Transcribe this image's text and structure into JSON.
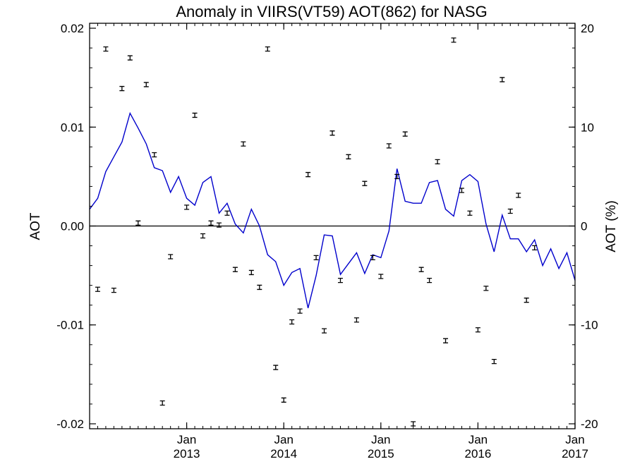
{
  "chart_data": {
    "type": "line",
    "title": "Anomaly in VIIRS(VT59) AOT(862) for NASG",
    "ylabel": "AOT",
    "ylabel_right": "AOT (%)",
    "xlabel": "",
    "xlim": [
      "2012-01",
      "2017-01"
    ],
    "ylim": [
      -0.0205,
      0.0205
    ],
    "ylim_right": [
      -20.5,
      20.5
    ],
    "yticks": [
      {
        "value": 0.02,
        "label": "0.02"
      },
      {
        "value": 0.01,
        "label": "0.01"
      },
      {
        "value": 0.0,
        "label": "0.00"
      },
      {
        "value": -0.01,
        "label": "-0.01"
      },
      {
        "value": -0.02,
        "label": "-0.02"
      }
    ],
    "yticks_right": [
      {
        "value": 20,
        "label": "20"
      },
      {
        "value": 10,
        "label": "10"
      },
      {
        "value": 0,
        "label": "0"
      },
      {
        "value": -10,
        "label": "-10"
      },
      {
        "value": -20,
        "label": "-20"
      }
    ],
    "xticks": [
      {
        "date": "2013-01",
        "month": "Jan",
        "year": "2013"
      },
      {
        "date": "2014-01",
        "month": "Jan",
        "year": "2014"
      },
      {
        "date": "2015-01",
        "month": "Jan",
        "year": "2015"
      },
      {
        "date": "2016-01",
        "month": "Jan",
        "year": "2016"
      },
      {
        "date": "2017-01",
        "month": "Jan",
        "year": "2017"
      }
    ],
    "zero_line": true,
    "grid": false,
    "series": [
      {
        "style": "line",
        "color": "#0000cc",
        "x": [
          "2012-01",
          "2012-02",
          "2012-03",
          "2012-04",
          "2012-05",
          "2012-06",
          "2012-07",
          "2012-08",
          "2012-09",
          "2012-10",
          "2012-11",
          "2012-12",
          "2013-01",
          "2013-02",
          "2013-03",
          "2013-04",
          "2013-05",
          "2013-06",
          "2013-07",
          "2013-08",
          "2013-09",
          "2013-10",
          "2013-11",
          "2013-12",
          "2014-01",
          "2014-02",
          "2014-03",
          "2014-04",
          "2014-05",
          "2014-06",
          "2014-07",
          "2014-08",
          "2014-09",
          "2014-10",
          "2014-11",
          "2014-12",
          "2015-01",
          "2015-02",
          "2015-03",
          "2015-04",
          "2015-05",
          "2015-06",
          "2015-07",
          "2015-08",
          "2015-09",
          "2015-10",
          "2015-11",
          "2015-12",
          "2016-01",
          "2016-02",
          "2016-03",
          "2016-04",
          "2016-05",
          "2016-06",
          "2016-07",
          "2016-08",
          "2016-09",
          "2016-10",
          "2016-11",
          "2016-12",
          "2017-01"
        ],
        "values": [
          0.0017,
          0.0028,
          0.0055,
          0.007,
          0.0085,
          0.0114,
          0.0099,
          0.0083,
          0.0059,
          0.0056,
          0.0034,
          0.005,
          0.0028,
          0.0021,
          0.0044,
          0.005,
          0.0013,
          0.0023,
          0.0002,
          -0.0007,
          0.0017,
          0.0,
          -0.0029,
          -0.0036,
          -0.006,
          -0.0047,
          -0.0043,
          -0.0083,
          -0.005,
          -0.0009,
          -0.001,
          -0.0049,
          -0.0038,
          -0.0027,
          -0.0048,
          -0.0029,
          -0.0032,
          -0.0005,
          0.0058,
          0.0025,
          0.0023,
          0.0023,
          0.0044,
          0.0046,
          0.0017,
          0.001,
          0.0046,
          0.0052,
          0.0045,
          0.0002,
          -0.0026,
          0.0011,
          -0.0013,
          -0.0013,
          -0.0026,
          -0.0014,
          -0.004,
          -0.0023,
          -0.0043,
          -0.0027,
          -0.0055
        ]
      },
      {
        "style": "errorbar-points",
        "color": "#000000",
        "x": [
          "2012-01",
          "2012-02",
          "2012-03",
          "2012-04",
          "2012-05",
          "2012-06",
          "2012-07",
          "2012-08",
          "2012-09",
          "2012-10",
          "2012-11",
          "2012-12",
          "2013-01",
          "2013-02",
          "2013-03",
          "2013-04",
          "2013-05",
          "2013-06",
          "2013-07",
          "2013-08",
          "2013-09",
          "2013-10",
          "2013-11",
          "2013-12",
          "2014-01",
          "2014-02",
          "2014-03",
          "2014-04",
          "2014-05",
          "2014-06",
          "2014-07",
          "2014-08",
          "2014-09",
          "2014-10",
          "2014-11",
          "2014-12",
          "2015-01",
          "2015-02",
          "2015-03",
          "2015-04",
          "2015-05",
          "2015-06",
          "2015-07",
          "2015-08",
          "2015-09",
          "2015-10",
          "2015-11",
          "2015-12",
          "2016-01",
          "2016-02",
          "2016-03",
          "2016-04",
          "2016-05",
          "2016-06",
          "2016-07",
          "2016-08",
          "2016-09",
          "2016-10",
          "2016-11",
          "2016-12",
          "2017-01"
        ],
        "values": [
          null,
          -0.0064,
          0.0179,
          -0.0065,
          0.0139,
          0.017,
          0.0003,
          0.0143,
          0.0072,
          -0.0179,
          -0.0031,
          null,
          0.0019,
          0.0112,
          -0.001,
          0.0003,
          0.0001,
          0.0013,
          -0.0044,
          0.0083,
          -0.0047,
          -0.0062,
          0.0179,
          -0.0143,
          -0.0176,
          -0.0097,
          -0.0086,
          0.0052,
          -0.0032,
          -0.0106,
          0.0094,
          -0.0055,
          0.007,
          -0.0095,
          0.0043,
          -0.0032,
          -0.0051,
          0.0081,
          0.005,
          0.0093,
          -0.02,
          -0.0044,
          -0.0055,
          0.0065,
          -0.0116,
          0.0188,
          0.0036,
          0.0013,
          -0.0105,
          -0.0063,
          -0.0137,
          0.0148,
          0.0015,
          0.0031,
          -0.0075,
          -0.0022,
          null,
          null,
          null,
          null,
          null
        ]
      }
    ]
  }
}
